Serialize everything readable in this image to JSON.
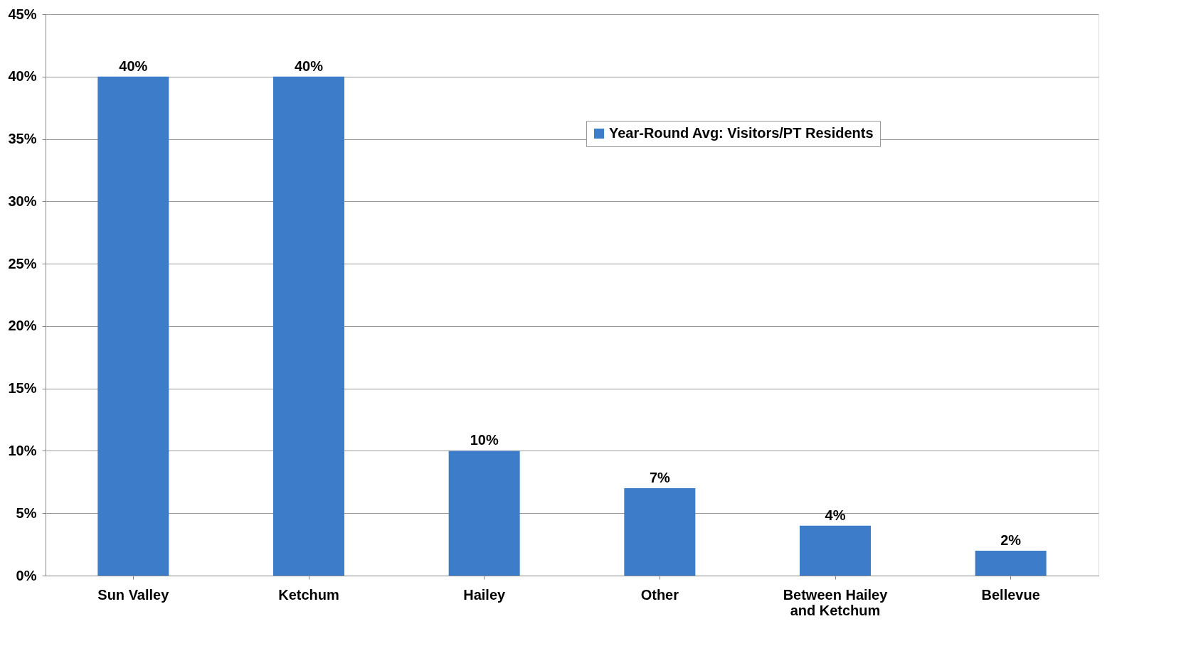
{
  "chart_data": {
    "type": "bar",
    "categories": [
      "Sun Valley",
      "Ketchum",
      "Hailey",
      "Other",
      "Between Hailey\nand Ketchum",
      "Bellevue"
    ],
    "series": [
      {
        "name": "Year-Round Avg: Visitors/PT Residents",
        "color": "#3d7cc9",
        "values": [
          40,
          40,
          10,
          7,
          4,
          2
        ],
        "value_labels": [
          "40%",
          "40%",
          "10%",
          "7%",
          "4%",
          "2%"
        ]
      }
    ],
    "ylim": [
      0,
      45
    ],
    "yticks": [
      {
        "value": 0,
        "label": "0%"
      },
      {
        "value": 5,
        "label": "5%"
      },
      {
        "value": 10,
        "label": "10%"
      },
      {
        "value": 15,
        "label": "15%"
      },
      {
        "value": 20,
        "label": "20%"
      },
      {
        "value": 25,
        "label": "25%"
      },
      {
        "value": 30,
        "label": "30%"
      },
      {
        "value": 35,
        "label": "35%"
      },
      {
        "value": 40,
        "label": "40%"
      },
      {
        "value": 45,
        "label": "45%"
      }
    ],
    "grid": "y",
    "legend": "top right"
  }
}
